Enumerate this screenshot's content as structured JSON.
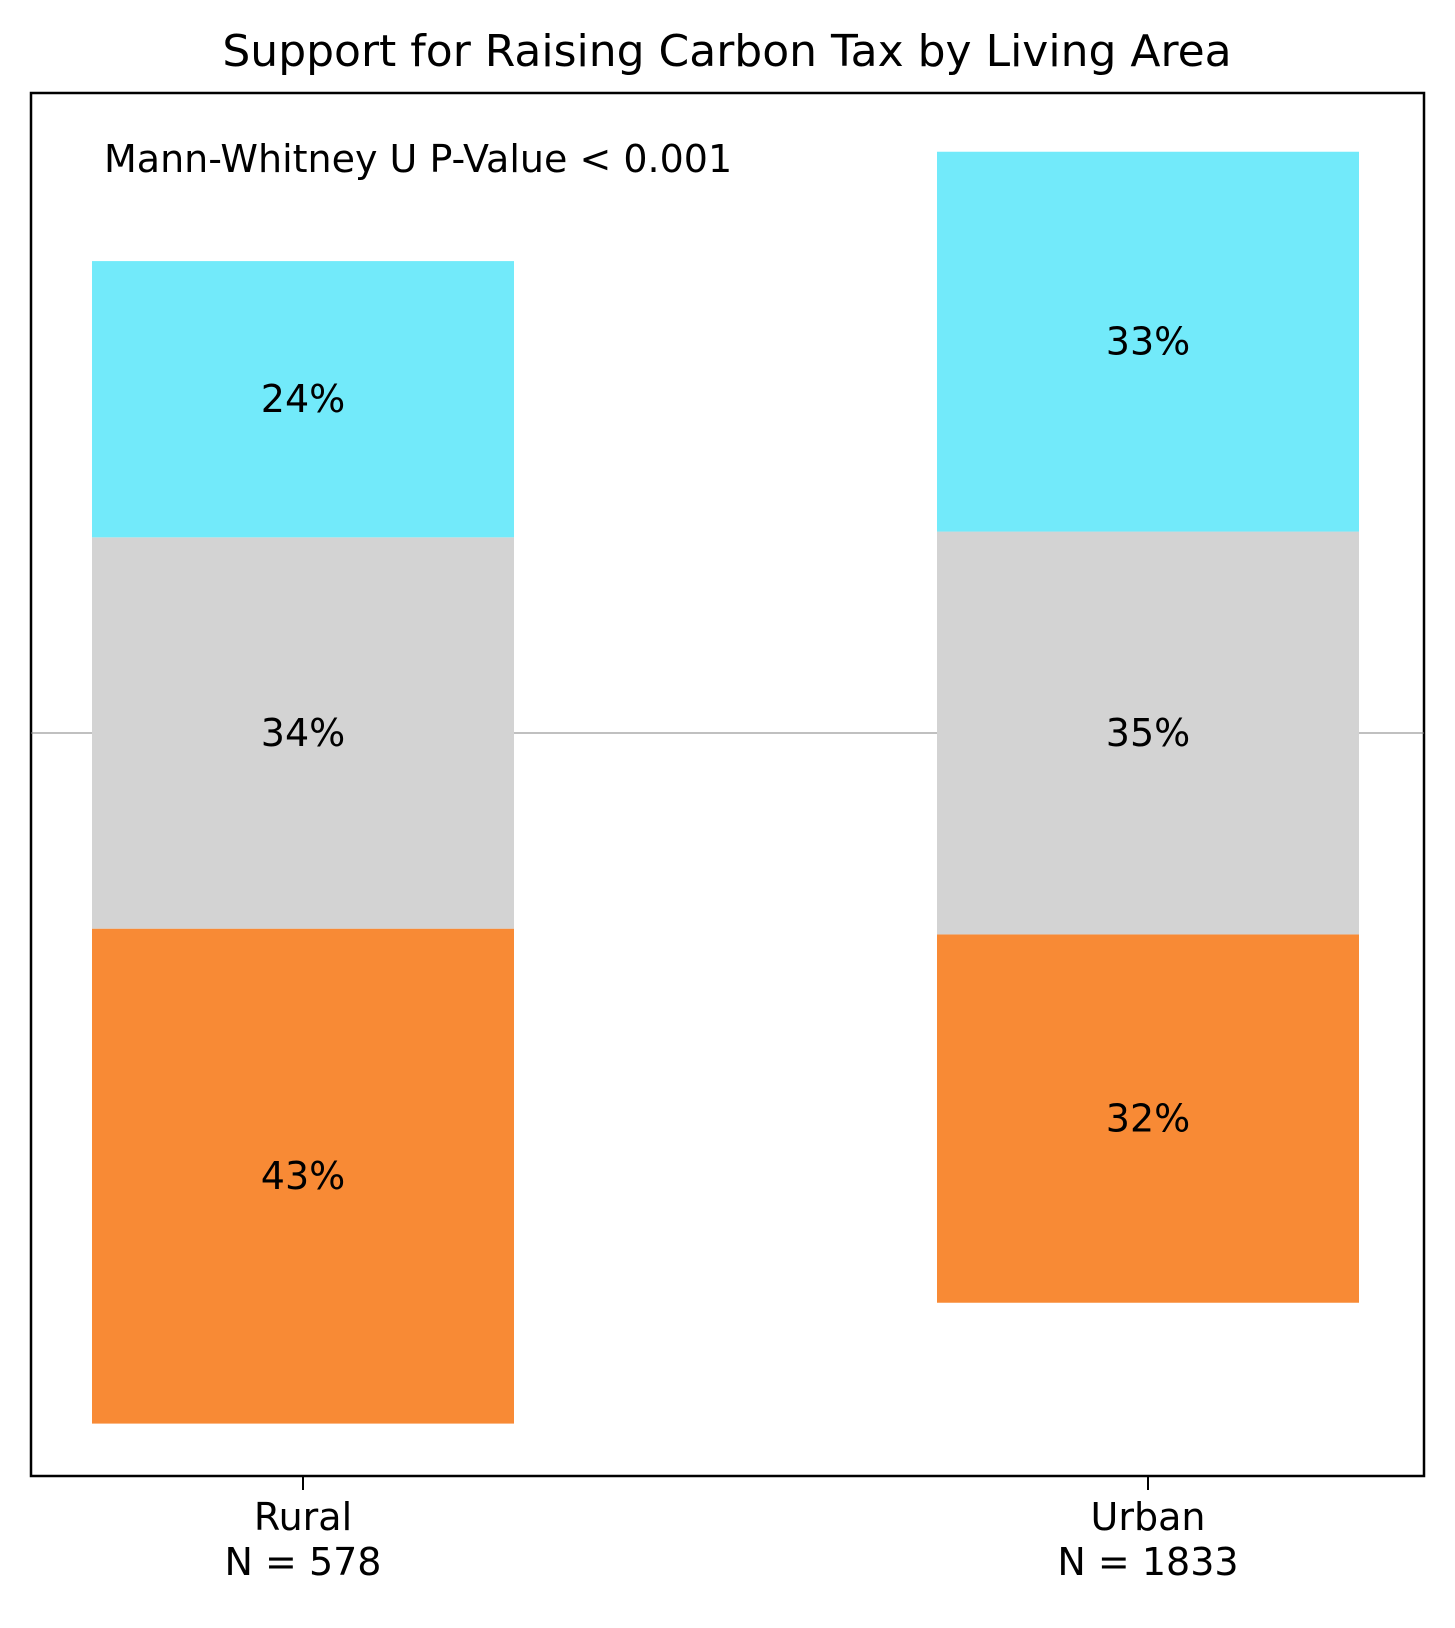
{
  "chart_data": {
    "type": "bar",
    "stacked": true,
    "diverging": true,
    "title": "Support for Raising Carbon Tax by Living Area",
    "annotation": "Mann-Whitney U P-Value < 0.001",
    "categories": [
      "Rural",
      "Urban"
    ],
    "category_counts": [
      "N = 578",
      "N = 1833"
    ],
    "series": [
      {
        "color": "#f88a35",
        "values": [
          43,
          32
        ],
        "labels": [
          "43%",
          "32%"
        ]
      },
      {
        "color": "#d3d3d3",
        "values": [
          34,
          35
        ],
        "labels": [
          "34%",
          "35%"
        ]
      },
      {
        "color": "#72eafa",
        "values": [
          24,
          33
        ],
        "labels": [
          "24%",
          "33%"
        ]
      }
    ],
    "center_line": true,
    "grid": false,
    "legend": "none",
    "y_axis_visible": false
  }
}
